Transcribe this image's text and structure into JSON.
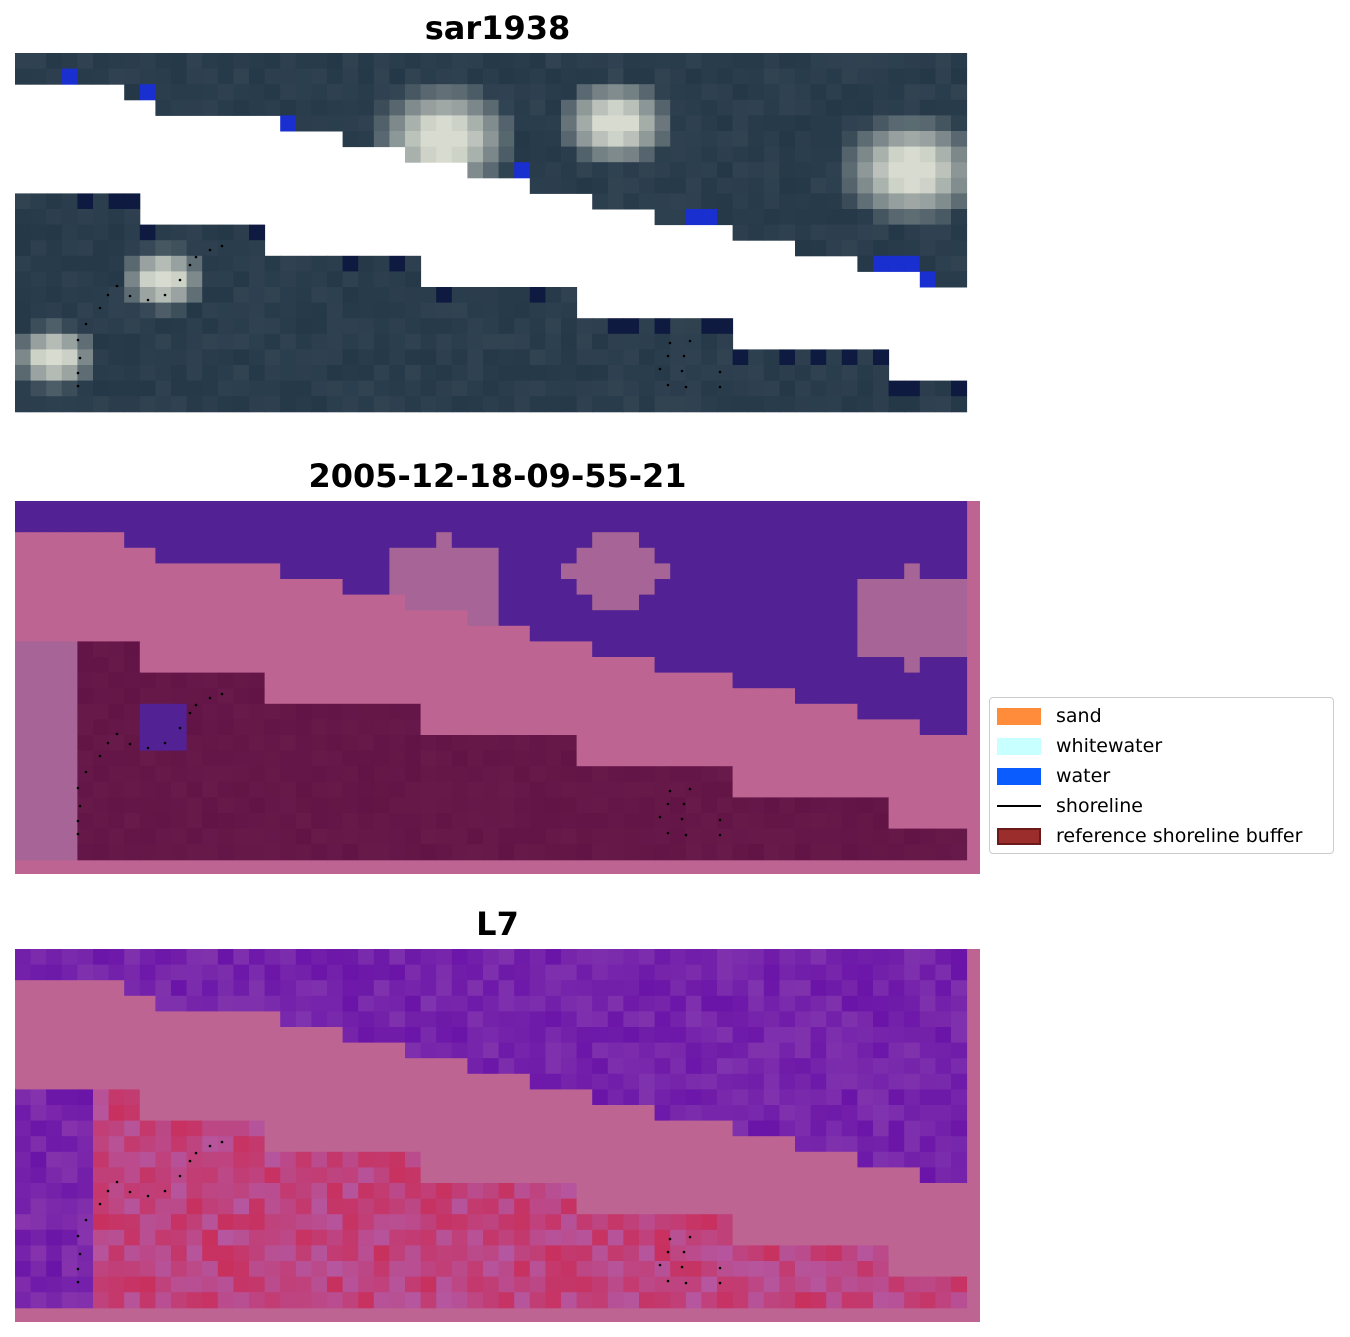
{
  "panels": [
    {
      "id": "rgb",
      "title": "sar1938"
    },
    {
      "id": "class",
      "title": "2005-12-18-09-55-21"
    },
    {
      "id": "index",
      "title": "L7"
    }
  ],
  "legend": {
    "items": [
      {
        "label": "sand",
        "color": "#ff8c3a",
        "kind": "patch"
      },
      {
        "label": "whitewater",
        "color": "#c8ffff",
        "kind": "patch"
      },
      {
        "label": "water",
        "color": "#0a5cff",
        "kind": "patch"
      },
      {
        "label": "shoreline",
        "color": "#000000",
        "kind": "line"
      },
      {
        "label": "reference shoreline buffer",
        "color": "#9b2d2d",
        "kind": "patch-border"
      }
    ]
  },
  "colors": {
    "rgb_land": "#243848",
    "rgb_cloud": "#d8dcd0",
    "rgb_water": "#1a2fd0",
    "rgb_dark": "#0e1a40",
    "class_bg": "#bd6492",
    "class_water": "#522294",
    "class_whitewater": "#a66596",
    "class_buffer": "#621446",
    "index_bg": "#bd6492",
    "index_high": "#6a14a8",
    "index_low": "#c8305e"
  }
}
